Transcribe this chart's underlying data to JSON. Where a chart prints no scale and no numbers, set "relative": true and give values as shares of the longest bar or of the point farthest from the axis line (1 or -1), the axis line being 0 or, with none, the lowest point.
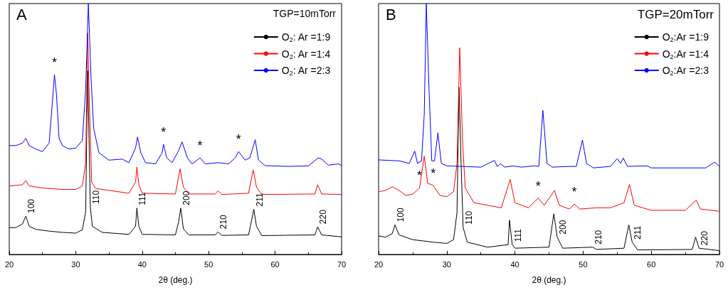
{
  "chart_data": [
    {
      "type": "line",
      "title": "A",
      "legend_title": "TGP=10mTorr",
      "xlabel": "2θ (deg.)",
      "relative": true,
      "xlim": [
        20,
        70
      ],
      "xticks": [
        20,
        30,
        40,
        50,
        60,
        70
      ],
      "legend": "top right",
      "series": [
        {
          "name": "O$_{2}$: Ar =1:9",
          "color": "#000000",
          "x": [
            20,
            21,
            22,
            22.5,
            23,
            24,
            26,
            28,
            30,
            31,
            31.5,
            31.7,
            31.8,
            32.0,
            32.2,
            32.5,
            34,
            38,
            39,
            39.2,
            39.5,
            40,
            45,
            45.5,
            45.8,
            46.2,
            47,
            51,
            51.4,
            52,
            56,
            56.5,
            56.8,
            57.2,
            58,
            66,
            66.4,
            67,
            70
          ],
          "values": [
            0.107,
            0.107,
            0.122,
            0.153,
            0.112,
            0.1,
            0.093,
            0.088,
            0.085,
            0.098,
            0.171,
            0.561,
            0.732,
            0.463,
            0.19,
            0.112,
            0.088,
            0.08,
            0.112,
            0.185,
            0.112,
            0.08,
            0.078,
            0.132,
            0.185,
            0.102,
            0.078,
            0.078,
            0.09,
            0.076,
            0.078,
            0.141,
            0.18,
            0.112,
            0.075,
            0.078,
            0.11,
            0.078,
            0.07
          ]
        },
        {
          "name": "O$_{2}$: Ar =1:4",
          "color": "#ff0000",
          "x": [
            20,
            22,
            22.5,
            23,
            25,
            28,
            30,
            31,
            31.5,
            31.8,
            32.1,
            32.4,
            33,
            38,
            39,
            39.2,
            39.5,
            40,
            45,
            45.7,
            46.2,
            47,
            51,
            51.4,
            52,
            56,
            56.7,
            57.2,
            58,
            66,
            66.4,
            67,
            70
          ],
          "values": [
            0.273,
            0.278,
            0.295,
            0.273,
            0.265,
            0.259,
            0.259,
            0.273,
            0.366,
            0.883,
            0.561,
            0.288,
            0.263,
            0.244,
            0.288,
            0.348,
            0.278,
            0.244,
            0.241,
            0.341,
            0.268,
            0.241,
            0.241,
            0.254,
            0.239,
            0.244,
            0.337,
            0.268,
            0.239,
            0.241,
            0.278,
            0.241,
            0.239
          ]
        },
        {
          "name": "O$_{2}$: Ar =2:3",
          "color": "#0000ff",
          "x": [
            20,
            21,
            22,
            22.5,
            23,
            24,
            25,
            26,
            26.5,
            26.8,
            27.1,
            27.5,
            28,
            29,
            30,
            31,
            31.5,
            31.9,
            32.3,
            32.7,
            33.5,
            35,
            37,
            38,
            39,
            39.3,
            39.8,
            40.5,
            42,
            43,
            43.2,
            43.7,
            44.5,
            45.5,
            46,
            46.8,
            47.5,
            48.7,
            49.5,
            51.5,
            53,
            54,
            54.5,
            55.5,
            56.2,
            57,
            57.5,
            58.5,
            62,
            65,
            66.5,
            67,
            68,
            69.5,
            70
          ],
          "values": [
            0.434,
            0.434,
            0.444,
            0.463,
            0.434,
            0.42,
            0.41,
            0.444,
            0.61,
            0.717,
            0.639,
            0.463,
            0.434,
            0.42,
            0.424,
            0.454,
            0.659,
            1,
            0.707,
            0.502,
            0.405,
            0.376,
            0.38,
            0.366,
            0.424,
            0.468,
            0.405,
            0.366,
            0.361,
            0.405,
            0.439,
            0.385,
            0.366,
            0.415,
            0.449,
            0.385,
            0.361,
            0.385,
            0.361,
            0.366,
            0.361,
            0.385,
            0.41,
            0.376,
            0.385,
            0.457,
            0.376,
            0.354,
            0.351,
            0.353,
            0.385,
            0.38,
            0.356,
            0.361,
            0.354
          ]
        }
      ],
      "annotations": [
        {
          "text": "*",
          "x": 26.8,
          "y": 0.717
        },
        {
          "text": "*",
          "x": 43.2,
          "y": 0.439
        },
        {
          "text": "*",
          "x": 48.7,
          "y": 0.385
        },
        {
          "text": "*",
          "x": 54.5,
          "y": 0.41
        },
        {
          "text": "100",
          "x": 22.5,
          "y": 0.153
        },
        {
          "text": "110",
          "x": 32.2,
          "y": 0.19
        },
        {
          "text": "111",
          "x": 39.2,
          "y": 0.185
        },
        {
          "text": "200",
          "x": 45.8,
          "y": 0.185
        },
        {
          "text": "210",
          "x": 51.4,
          "y": 0.09
        },
        {
          "text": "211",
          "x": 56.8,
          "y": 0.18
        },
        {
          "text": "220",
          "x": 66.4,
          "y": 0.11
        }
      ]
    },
    {
      "type": "line",
      "title": "B",
      "legend_title": "TGP=20mTorr",
      "xlabel": "2θ (deg.)",
      "relative": true,
      "xlim": [
        20,
        70
      ],
      "xticks": [
        20,
        30,
        40,
        50,
        60,
        70
      ],
      "legend": "top right",
      "series": [
        {
          "name": "O$_{2}$:Ar =1:9",
          "color": "#000000",
          "x": [
            20,
            21,
            22,
            22.4,
            23,
            25,
            28,
            30,
            31,
            31.5,
            31.8,
            32.1,
            32.4,
            33,
            36,
            39,
            39.2,
            39.6,
            40,
            45,
            45.7,
            46.2,
            47,
            51.4,
            52,
            56,
            56.7,
            57.2,
            58,
            66,
            66.5,
            67,
            70
          ],
          "values": [
            0.074,
            0.069,
            0.083,
            0.118,
            0.078,
            0.059,
            0.049,
            0.044,
            0.059,
            0.167,
            0.667,
            0.363,
            0.108,
            0.049,
            0.029,
            0.039,
            0.137,
            0.039,
            0.025,
            0.029,
            0.162,
            0.069,
            0.025,
            0.029,
            0.02,
            0.025,
            0.118,
            0.049,
            0.018,
            0.02,
            0.069,
            0.025,
            0.015
          ]
        },
        {
          "name": "O$_{2}$:Ar =1:4",
          "color": "#ff0000",
          "x": [
            20,
            21,
            22,
            23,
            24,
            25,
            26,
            26.7,
            27.2,
            28,
            29,
            30,
            31,
            31.5,
            31.9,
            32.3,
            32.7,
            34,
            38,
            39.3,
            40,
            42,
            43.4,
            44.3,
            45.8,
            46.5,
            48,
            48.7,
            49.5,
            52,
            54,
            56,
            56.8,
            57.5,
            60,
            65,
            66.6,
            67.2,
            70
          ],
          "values": [
            0.25,
            0.255,
            0.27,
            0.255,
            0.235,
            0.24,
            0.265,
            0.392,
            0.284,
            0.275,
            0.235,
            0.23,
            0.25,
            0.363,
            0.824,
            0.461,
            0.265,
            0.206,
            0.186,
            0.299,
            0.206,
            0.186,
            0.225,
            0.196,
            0.255,
            0.196,
            0.181,
            0.201,
            0.181,
            0.186,
            0.186,
            0.206,
            0.279,
            0.196,
            0.176,
            0.176,
            0.216,
            0.181,
            0.172
          ]
        },
        {
          "name": "O$_{2}$:Ar =2:3",
          "color": "#0000ff",
          "x": [
            20,
            23,
            24.5,
            25.3,
            25.7,
            26.3,
            26.7,
            27.0,
            27.4,
            27.8,
            28.2,
            28.7,
            29.2,
            30,
            35,
            37,
            37.4,
            37.9,
            38.5,
            39.7,
            41,
            42.8,
            43.5,
            44.1,
            44.7,
            45.5,
            48,
            49,
            49.9,
            50.5,
            51.5,
            54,
            55,
            55.5,
            55.9,
            56.5,
            59.4,
            60,
            68,
            69.3,
            70
          ],
          "values": [
            0.377,
            0.373,
            0.363,
            0.412,
            0.363,
            0.373,
            0.559,
            1,
            0.657,
            0.373,
            0.373,
            0.485,
            0.363,
            0.353,
            0.348,
            0.375,
            0.351,
            0.361,
            0.348,
            0.353,
            0.348,
            0.353,
            0.351,
            0.574,
            0.363,
            0.348,
            0.351,
            0.351,
            0.456,
            0.363,
            0.345,
            0.351,
            0.382,
            0.363,
            0.384,
            0.351,
            0.353,
            0.345,
            0.345,
            0.368,
            0.351
          ]
        }
      ],
      "annotations": [
        {
          "text": "*",
          "x": 26,
          "y": 0.265
        },
        {
          "text": "*",
          "x": 28,
          "y": 0.275
        },
        {
          "text": "*",
          "x": 43.4,
          "y": 0.225
        },
        {
          "text": "*",
          "x": 48.7,
          "y": 0.201
        },
        {
          "text": "100",
          "x": 22.4,
          "y": 0.118
        },
        {
          "text": "110",
          "x": 32.4,
          "y": 0.108
        },
        {
          "text": "111",
          "x": 39.6,
          "y": 0.039
        },
        {
          "text": "200",
          "x": 46.2,
          "y": 0.069
        },
        {
          "text": "210",
          "x": 51.4,
          "y": 0.029
        },
        {
          "text": "211",
          "x": 57.2,
          "y": 0.049
        },
        {
          "text": "220",
          "x": 67,
          "y": 0.025
        }
      ]
    }
  ]
}
